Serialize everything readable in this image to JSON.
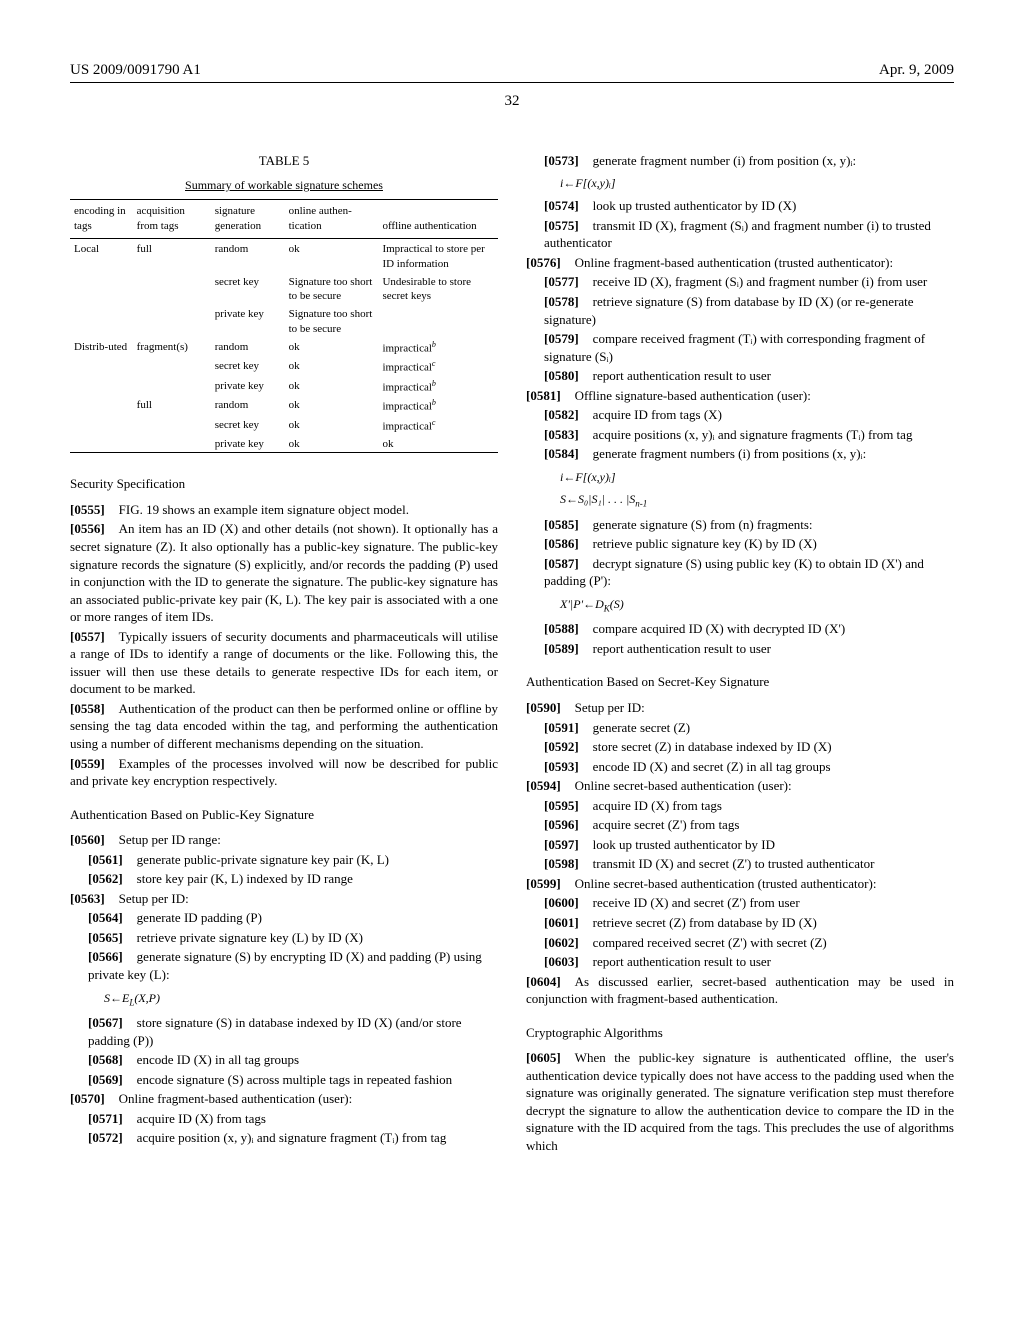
{
  "header": {
    "publication_number": "US 2009/0091790 A1",
    "publication_date": "Apr. 9, 2009",
    "page_number": "32"
  },
  "table5": {
    "label": "TABLE 5",
    "caption": "Summary of workable signature schemes",
    "columns": [
      "encoding in tags",
      "acquisition from tags",
      "signature generation",
      "online authen-tication",
      "offline authentication"
    ],
    "rows": [
      [
        "Local",
        "full",
        "random",
        "ok",
        "Impractical to store per ID information"
      ],
      [
        "",
        "",
        "secret key",
        "Signature too short to be secure",
        "Undesirable to store secret keys"
      ],
      [
        "",
        "",
        "private key",
        "Signature too short to be secure",
        ""
      ],
      [
        "Distrib-uted",
        "fragment(s)",
        "random",
        "ok",
        "impractical"
      ],
      [
        "",
        "",
        "secret key",
        "ok",
        "impractical"
      ],
      [
        "",
        "",
        "private key",
        "ok",
        "impractical"
      ],
      [
        "",
        "full",
        "random",
        "ok",
        "impractical"
      ],
      [
        "",
        "",
        "secret key",
        "ok",
        "impractical"
      ],
      [
        "",
        "",
        "private key",
        "ok",
        "ok"
      ]
    ],
    "footnote_sup": [
      "",
      "",
      "",
      "b",
      "c",
      "b",
      "b",
      "c",
      ""
    ]
  },
  "left": {
    "sec1_heading": "Security Specification",
    "p0555": "FIG. 19 shows an example item signature object model.",
    "p0556": "An item has an ID (X) and other details (not shown). It optionally has a secret signature (Z). It also optionally has a public-key signature. The public-key signature records the signature (S) explicitly, and/or records the padding (P) used in conjunction with the ID to generate the signature. The public-key signature has an associated public-private key pair (K, L). The key pair is associated with a one or more ranges of item IDs.",
    "p0557": "Typically issuers of security documents and pharmaceuticals will utilise a range of IDs to identify a range of documents or the like. Following this, the issuer will then use these details to generate respective IDs for each item, or document to be marked.",
    "p0558": "Authentication of the product can then be performed online or offline by sensing the tag data encoded within the tag, and performing the authentication using a number of different mechanisms depending on the situation.",
    "p0559": "Examples of the processes involved will now be described for public and private key encryption respectively.",
    "sec2_heading": "Authentication Based on Public-Key Signature",
    "p0560": "Setup per ID range:",
    "p0561": "generate public-private signature key pair (K, L)",
    "p0562": "store key pair (K, L) indexed by ID range",
    "p0563": "Setup per ID:",
    "p0564": "generate ID padding (P)",
    "p0565": "retrieve private signature key (L) by ID (X)",
    "p0566": "generate signature (S) by encrypting ID (X) and padding (P) using private key (L):",
    "formula1": "S←E",
    "formula1_sub": "L",
    "formula1_tail": "(X,P)",
    "p0567": "store signature (S) in database indexed by ID (X) (and/or store padding (P))",
    "p0568": "encode ID (X) in all tag groups",
    "p0569": "encode signature (S) across multiple tags in repeated fashion",
    "p0570": "Online fragment-based authentication (user):",
    "p0571": "acquire ID (X) from tags",
    "p0572": "acquire position (x, y)ᵢ and signature fragment (Tᵢ) from tag"
  },
  "right": {
    "p0573": "generate fragment number (i) from position (x, y)ᵢ:",
    "formula2": "i←F[(x,y)ᵢ]",
    "p0574": "look up trusted authenticator by ID (X)",
    "p0575": "transmit ID (X), fragment (Sᵢ) and fragment number (i) to trusted authenticator",
    "p0576": "Online fragment-based authentication (trusted authenticator):",
    "p0577": "receive ID (X), fragment (Sᵢ) and fragment number (i) from user",
    "p0578": "retrieve signature (S) from database by ID (X) (or re-generate signature)",
    "p0579": "compare received fragment (Tᵢ) with corresponding fragment of signature (Sᵢ)",
    "p0580": "report authentication result to user",
    "p0581": "Offline signature-based authentication (user):",
    "p0582": "acquire ID from tags (X)",
    "p0583": "acquire positions (x, y)ᵢ and signature fragments (Tᵢ) from tag",
    "p0584": "generate fragment numbers (i) from positions (x, y)ᵢ:",
    "formula3a": "i←F[(x,y)ᵢ]",
    "formula3b": "S←S₀|S₁| . . . |S",
    "formula3b_sub": "n-1",
    "p0585": "generate signature (S) from (n) fragments:",
    "p0586": "retrieve public signature key (K) by ID (X)",
    "p0587": "decrypt signature (S) using public key (K) to obtain ID (X') and padding (P'):",
    "formula4": "X'|P'←D",
    "formula4_sub": "K",
    "formula4_tail": "(S)",
    "p0588": "compare acquired ID (X) with decrypted ID (X')",
    "p0589": "report authentication result to user",
    "sec3_heading": "Authentication Based on Secret-Key Signature",
    "p0590": "Setup per ID:",
    "p0591": "generate secret (Z)",
    "p0592": "store secret (Z) in database indexed by ID (X)",
    "p0593": "encode ID (X) and secret (Z) in all tag groups",
    "p0594": "Online secret-based authentication (user):",
    "p0595": "acquire ID (X) from tags",
    "p0596": "acquire secret (Z') from tags",
    "p0597": "look up trusted authenticator by ID",
    "p0598": "transmit ID (X) and secret (Z') to trusted authenticator",
    "p0599": "Online secret-based authentication (trusted authenticator):",
    "p0600": "receive ID (X) and secret (Z') from user",
    "p0601": "retrieve secret (Z) from database by ID (X)",
    "p0602": "compared received secret (Z') with secret (Z)",
    "p0603": "report authentication result to user",
    "p0604": "As discussed earlier, secret-based authentication may be used in conjunction with fragment-based authentication.",
    "sec4_heading": "Cryptographic Algorithms",
    "p0605": "When the public-key signature is authenticated offline, the user's authentication device typically does not have access to the padding used when the signature was originally generated. The signature verification step must therefore decrypt the signature to allow the authentication device to compare the ID in the signature with the ID acquired from the tags. This precludes the use of algorithms which"
  }
}
